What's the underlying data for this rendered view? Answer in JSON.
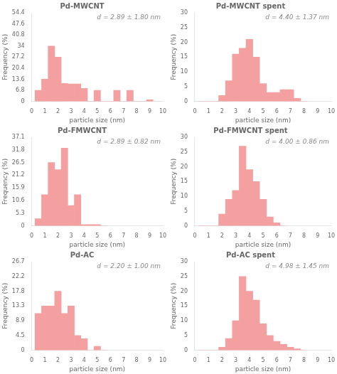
{
  "chart_data": [
    {
      "type": "bar",
      "title": "Pd-MWCNT",
      "annotations": [
        "d = 2.89 ± 1.80 nm"
      ],
      "x": [
        0.5,
        1.0,
        1.5,
        2.0,
        2.5,
        3.0,
        3.5,
        4.0,
        4.5,
        5.0,
        5.5,
        6.0,
        6.5,
        7.0,
        7.5,
        8.0,
        8.5,
        9.0
      ],
      "values": [
        6.8,
        13.6,
        34.0,
        27.2,
        11.0,
        10.7,
        10.7,
        8.0,
        0.0,
        6.8,
        0.0,
        0.0,
        6.8,
        0.0,
        6.8,
        0.0,
        0.0,
        1.0
      ],
      "color": "#f4a0a0",
      "xlabel": "particle size (nm)",
      "ylabel": "Frequency (%)",
      "xlim": [
        0,
        10
      ],
      "xticks": [
        0,
        1,
        2,
        3,
        4,
        5,
        6,
        7,
        8,
        9,
        10
      ],
      "ylim": [
        0,
        54.4
      ],
      "yticks": [
        0,
        6.8,
        13.6,
        20.4,
        27.2,
        34.0,
        40.8,
        47.6,
        54.4
      ],
      "grid": false
    },
    {
      "type": "bar",
      "title": "Pd-MWCNT spent",
      "annotations": [
        "d = 4.40 ± 1.37 nm"
      ],
      "x": [
        0.5,
        1.0,
        1.5,
        2.0,
        2.5,
        3.0,
        3.5,
        4.0,
        4.5,
        5.0,
        5.5,
        6.0,
        6.5,
        7.0,
        7.5,
        8.0
      ],
      "values": [
        0.0,
        0.0,
        0.0,
        2.0,
        7.0,
        16.0,
        18.0,
        21.0,
        15.0,
        6.0,
        3.0,
        3.0,
        4.0,
        4.0,
        1.0,
        0.0
      ],
      "color": "#f4a0a0",
      "xlabel": "particle size (nm)",
      "ylabel": "Frequency (%)",
      "xlim": [
        0,
        10
      ],
      "xticks": [
        0,
        1,
        2,
        3,
        4,
        5,
        6,
        7,
        8,
        9,
        10
      ],
      "ylim": [
        0,
        30
      ],
      "yticks": [
        0,
        5,
        10,
        15,
        20,
        25,
        30
      ],
      "grid": false
    },
    {
      "type": "bar",
      "title": "Pd-FMWCNT",
      "annotations": [
        "d = 2.89 ± 0.82 nm"
      ],
      "x": [
        0.5,
        1.0,
        1.5,
        2.0,
        2.5,
        3.0,
        3.5,
        4.0,
        4.5,
        5.0,
        5.5
      ],
      "values": [
        3.0,
        13.0,
        26.5,
        23.5,
        32.5,
        8.5,
        13.0,
        0.5,
        0.5,
        0.5,
        0.0
      ],
      "color": "#f4a0a0",
      "xlabel": "particle size (nm)",
      "ylabel": "Frequency (%)",
      "xlim": [
        0,
        10
      ],
      "xticks": [
        0,
        1,
        2,
        3,
        4,
        5,
        6,
        7,
        8,
        9,
        10
      ],
      "ylim": [
        0,
        37.1
      ],
      "yticks": [
        0,
        5.3,
        10.6,
        15.9,
        21.2,
        26.5,
        31.8,
        37.1
      ],
      "grid": false
    },
    {
      "type": "bar",
      "title": "Pd-FMWCNT spent",
      "annotations": [
        "d = 4.00 ± 0.86 nm"
      ],
      "x": [
        0.5,
        1.0,
        1.5,
        2.0,
        2.5,
        3.0,
        3.5,
        4.0,
        4.5,
        5.0,
        5.5,
        6.0,
        6.5
      ],
      "values": [
        0.0,
        0.0,
        0.0,
        4.0,
        9.0,
        12.0,
        27.0,
        19.0,
        15.0,
        9.0,
        3.0,
        1.0,
        0.0
      ],
      "color": "#f4a0a0",
      "xlabel": "particle size (nm)",
      "ylabel": "Frequency (%)",
      "xlim": [
        0,
        10
      ],
      "xticks": [
        0,
        1,
        2,
        3,
        4,
        5,
        6,
        7,
        8,
        9,
        10
      ],
      "ylim": [
        0,
        30
      ],
      "yticks": [
        0,
        5,
        10,
        15,
        20,
        25,
        30
      ],
      "grid": false
    },
    {
      "type": "bar",
      "title": "Pd-AC",
      "annotations": [
        "d = 2.20 ± 1.00 nm"
      ],
      "x": [
        0.5,
        1.0,
        1.5,
        2.0,
        2.5,
        3.0,
        3.5,
        4.0,
        4.5,
        5.0,
        5.5
      ],
      "values": [
        11.1,
        13.35,
        13.35,
        17.8,
        11.1,
        13.35,
        4.45,
        3.5,
        0.0,
        1.2,
        0.0
      ],
      "color": "#f4a0a0",
      "xlabel": "particle size (nm)",
      "ylabel": "Frequency (%)",
      "xlim": [
        0,
        10
      ],
      "xticks": [
        0,
        1,
        2,
        3,
        4,
        5,
        6,
        7,
        8,
        9,
        10
      ],
      "ylim": [
        0,
        26.7
      ],
      "yticks": [
        0,
        {
          "value": 4.45,
          "label": "4.5"
        },
        8.9,
        {
          "value": 13.35,
          "label": "13.3"
        },
        17.8,
        {
          "value": 22.25,
          "label": "22.2"
        },
        26.7
      ],
      "grid": false
    },
    {
      "type": "bar",
      "title": "Pd-AC spent",
      "annotations": [
        "d = 4.98 ± 1.45 nm"
      ],
      "x": [
        0.5,
        1.0,
        1.5,
        2.0,
        2.5,
        3.0,
        3.5,
        4.0,
        4.5,
        5.0,
        5.5,
        6.0,
        6.5,
        7.0,
        7.5,
        8.0
      ],
      "values": [
        0.0,
        0.0,
        0.0,
        1.0,
        4.0,
        10.0,
        25.0,
        20.0,
        17.0,
        9.0,
        5.0,
        3.0,
        2.0,
        1.0,
        0.5,
        0.0
      ],
      "color": "#f4a0a0",
      "xlabel": "particle size (nm)",
      "ylabel": "Frequency (%)",
      "xlim": [
        0,
        10
      ],
      "xticks": [
        0,
        1,
        2,
        3,
        4,
        5,
        6,
        7,
        8,
        9,
        10
      ],
      "ylim": [
        0,
        30
      ],
      "yticks": [
        0,
        5,
        10,
        15,
        20,
        25,
        30
      ],
      "grid": false
    }
  ]
}
